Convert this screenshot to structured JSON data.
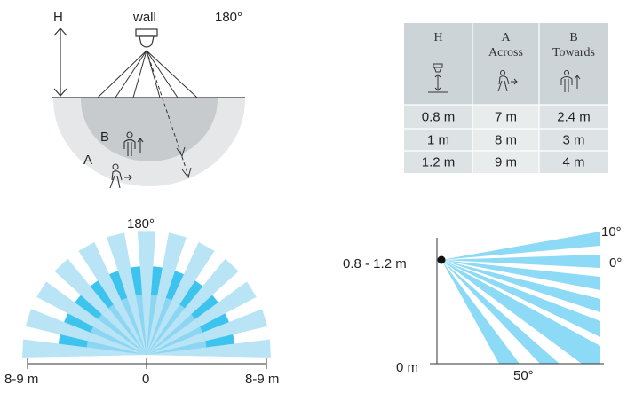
{
  "mount_diagram": {
    "height_label": "H",
    "wall_label": "wall",
    "angle_label": "180°",
    "zone_b_label": "B",
    "zone_a_label": "A"
  },
  "table": {
    "headers": [
      {
        "key": "H",
        "sub": "",
        "icon": "sensor-height-icon"
      },
      {
        "key": "A",
        "sub": "Across",
        "icon": "person-walking-across-icon"
      },
      {
        "key": "B",
        "sub": "Towards",
        "icon": "person-walking-towards-icon"
      }
    ],
    "rows": [
      [
        "0.8 m",
        "7 m",
        "2.4 m"
      ],
      [
        "1 m",
        "8 m",
        "3 m"
      ],
      [
        "1.2 m",
        "9 m",
        "4 m"
      ]
    ],
    "colors": {
      "header": "#cdd4d8",
      "row_light": "#e9eced",
      "row_dark": "#dde2e5"
    }
  },
  "top_view": {
    "angle_label": "180°",
    "left_label": "8-9 m",
    "center_label": "0",
    "right_label": "8-9 m",
    "colors": {
      "light": "#b8e4f6",
      "dark": "#3cc3ee",
      "mid": "#8dd6f3"
    }
  },
  "side_view": {
    "height_range_label": "0.8 - 1.2 m",
    "floor_label": "0 m",
    "angle_top_label": "10°",
    "angle_mid_label": "0°",
    "spread_label": "50°",
    "color": "#8cdaf6"
  }
}
